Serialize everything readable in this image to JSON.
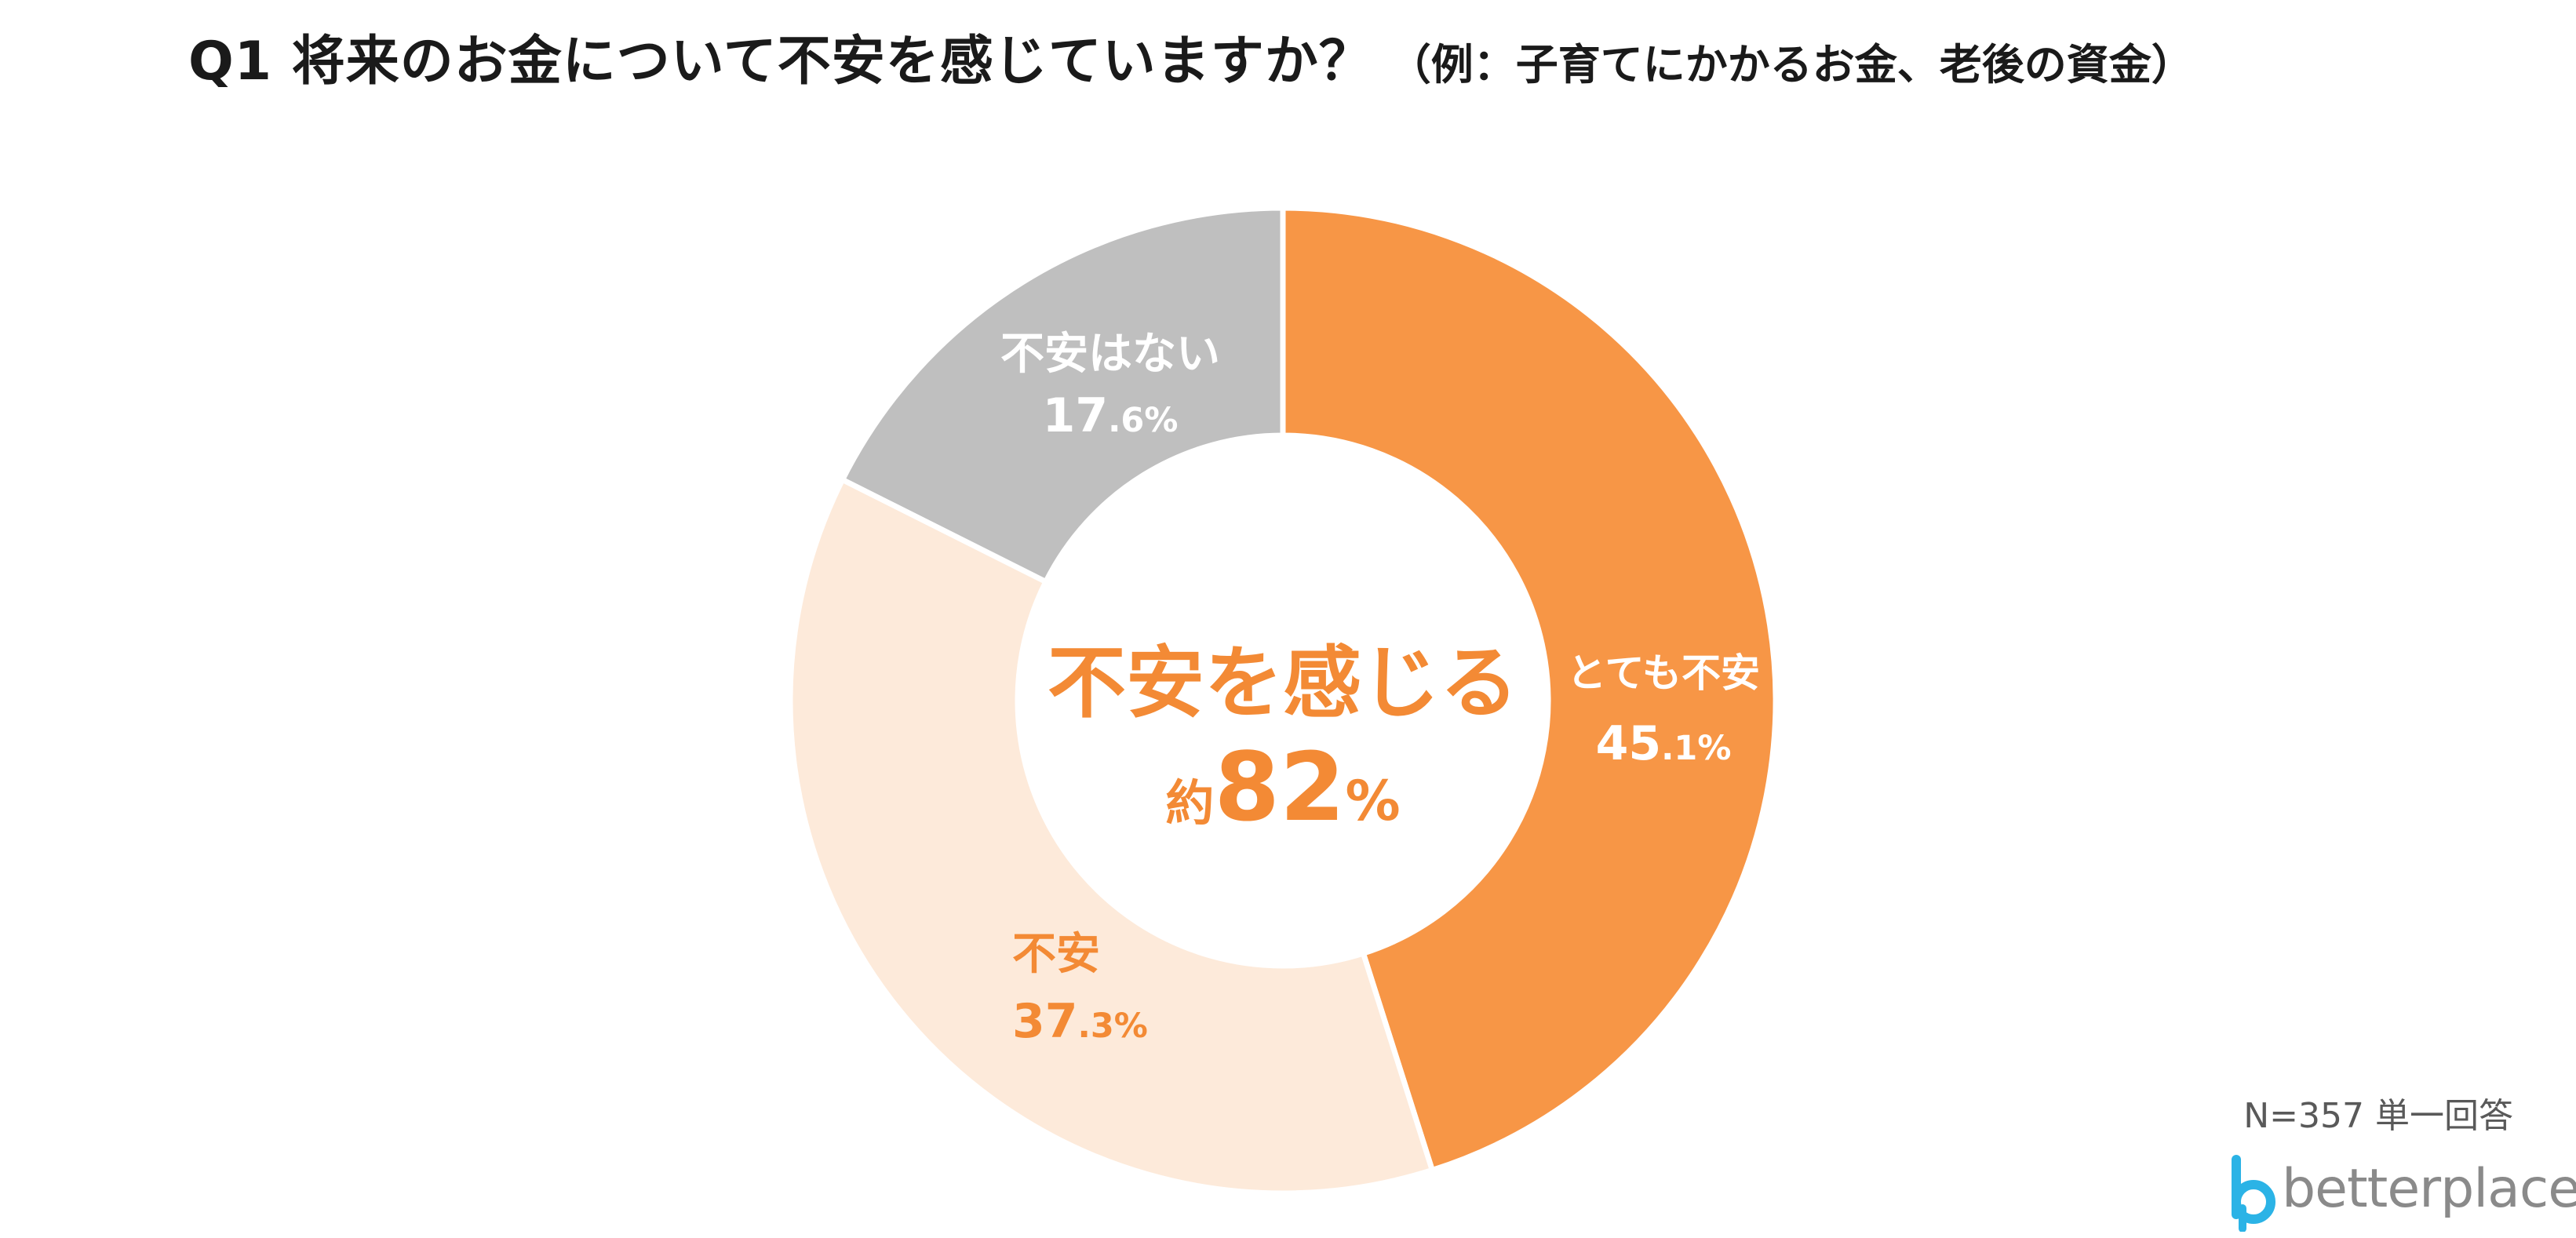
{
  "title": "Q1 将来のお金について不安を感じていますか？",
  "subtitle": "（例：子育てにかかるお金、老後の資金）",
  "note": "N=357 単一回答",
  "logo_text": "betterplace",
  "colors": {
    "very_anxious": "#F79646",
    "anxious": "#FDEADA",
    "not_anxious": "#BFBFBF",
    "accent": "#F38A35",
    "white": "#FFFFFF"
  },
  "chart_data": {
    "type": "pie",
    "variant": "donut",
    "start": "12 o'clock, clockwise",
    "slices": [
      {
        "label": "とても不安",
        "value": 45.1,
        "value_int": "45",
        "value_dec": ".1%",
        "color": "#F79646",
        "label_color": "#FFFFFF"
      },
      {
        "label": "不安",
        "value": 37.3,
        "value_int": "37",
        "value_dec": ".3%",
        "color": "#FDEADA",
        "label_color": "#F38A35"
      },
      {
        "label": "不安はない",
        "value": 17.6,
        "value_int": "17",
        "value_dec": ".6%",
        "color": "#BFBFBF",
        "label_color": "#FFFFFF"
      }
    ],
    "center": {
      "line1": "不安を感じる",
      "prefix": "約",
      "number": "82",
      "suffix": "%"
    }
  }
}
